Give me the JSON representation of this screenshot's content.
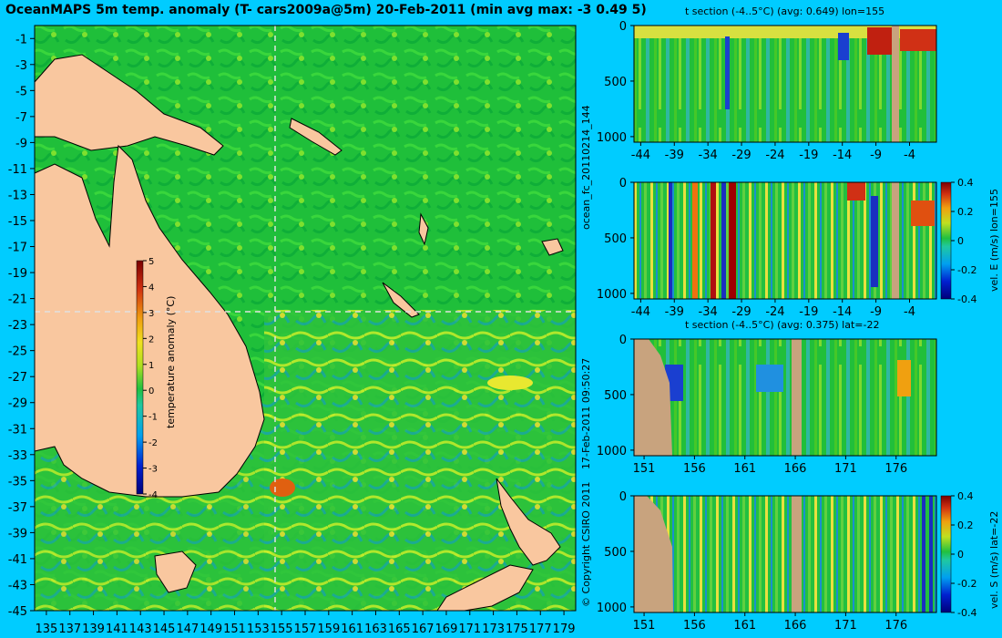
{
  "main_title": "OceanMAPS 5m temp. anomaly (T- cars2009a@5m) 20-Feb-2011 (min avg max: -3 0.49 5)",
  "side_label_top": "ocean_fc_20110214_144",
  "side_label_bottom": "17-Feb-2011 09:50:27",
  "copyright": "© Copyright CSIRO 2011",
  "colors": {
    "background": "#00ccff",
    "land": "#f9c79f",
    "section_land": "#c8a37e",
    "ocean_base": "#22c03a"
  },
  "chart_data": [
    {
      "type": "heatmap",
      "name": "map",
      "title": "OceanMAPS 5m temp. anomaly (T- cars2009a@5m) 20-Feb-2011 (min avg max: -3 0.49 5)",
      "x_ticks": [
        "135",
        "137",
        "139",
        "141",
        "143",
        "145",
        "147",
        "149",
        "151",
        "153",
        "155",
        "157",
        "159",
        "161",
        "163",
        "165",
        "167",
        "169",
        "171",
        "173",
        "175",
        "177",
        "179"
      ],
      "y_ticks": [
        "-1",
        "-3",
        "-5",
        "-7",
        "-9",
        "-11",
        "-13",
        "-15",
        "-17",
        "-19",
        "-21",
        "-23",
        "-25",
        "-27",
        "-29",
        "-31",
        "-33",
        "-35",
        "-37",
        "-39",
        "-41",
        "-43",
        "-45"
      ],
      "xlim": [
        134,
        180
      ],
      "ylim": [
        -45,
        0
      ],
      "crosshair": {
        "lon": 155,
        "lat": -22
      },
      "colorbar": {
        "label": "temperature anomaly (°C)",
        "ticks": [
          "5",
          "4",
          "3",
          "2",
          "1",
          "0",
          "-1",
          "-2",
          "-3",
          "-4"
        ],
        "range": [
          -4,
          5
        ]
      }
    },
    {
      "type": "heatmap",
      "name": "section1",
      "title": "t section (-4..5°C) (avg: 0.649) lon=155",
      "x_ticks": [
        "-44",
        "-39",
        "-34",
        "-29",
        "-24",
        "-19",
        "-14",
        "-9",
        "-4"
      ],
      "y_ticks": [
        "0",
        "500",
        "1000"
      ],
      "xlim": [
        -45,
        0
      ],
      "ylim": [
        0,
        1050
      ]
    },
    {
      "type": "heatmap",
      "name": "section2",
      "title": "",
      "x_ticks": [
        "-44",
        "-39",
        "-34",
        "-29",
        "-24",
        "-19",
        "-14",
        "-9",
        "-4"
      ],
      "y_ticks": [
        "0",
        "500",
        "1000"
      ],
      "xlim": [
        -45,
        0
      ],
      "ylim": [
        0,
        1050
      ],
      "colorbar": {
        "label": "vel. E (m/s) lon=155",
        "ticks": [
          "0.4",
          "0.2",
          "0",
          "-0.2",
          "-0.4"
        ],
        "range": [
          -0.4,
          0.4
        ]
      }
    },
    {
      "type": "heatmap",
      "name": "section3",
      "title": "t section (-4..5°C) (avg: 0.375) lat=-22",
      "x_ticks": [
        "151",
        "156",
        "161",
        "166",
        "171",
        "176"
      ],
      "y_ticks": [
        "0",
        "500",
        "1000"
      ],
      "xlim": [
        150,
        180
      ],
      "ylim": [
        0,
        1050
      ]
    },
    {
      "type": "heatmap",
      "name": "section4",
      "title": "",
      "x_ticks": [
        "151",
        "156",
        "161",
        "166",
        "171",
        "176"
      ],
      "y_ticks": [
        "0",
        "500",
        "1000"
      ],
      "xlim": [
        150,
        180
      ],
      "ylim": [
        0,
        1050
      ],
      "colorbar": {
        "label": "vel. S (m/s) lat=-22",
        "ticks": [
          "0.4",
          "0.2",
          "0",
          "-0.2",
          "-0.4"
        ],
        "range": [
          -0.4,
          0.4
        ]
      }
    }
  ]
}
